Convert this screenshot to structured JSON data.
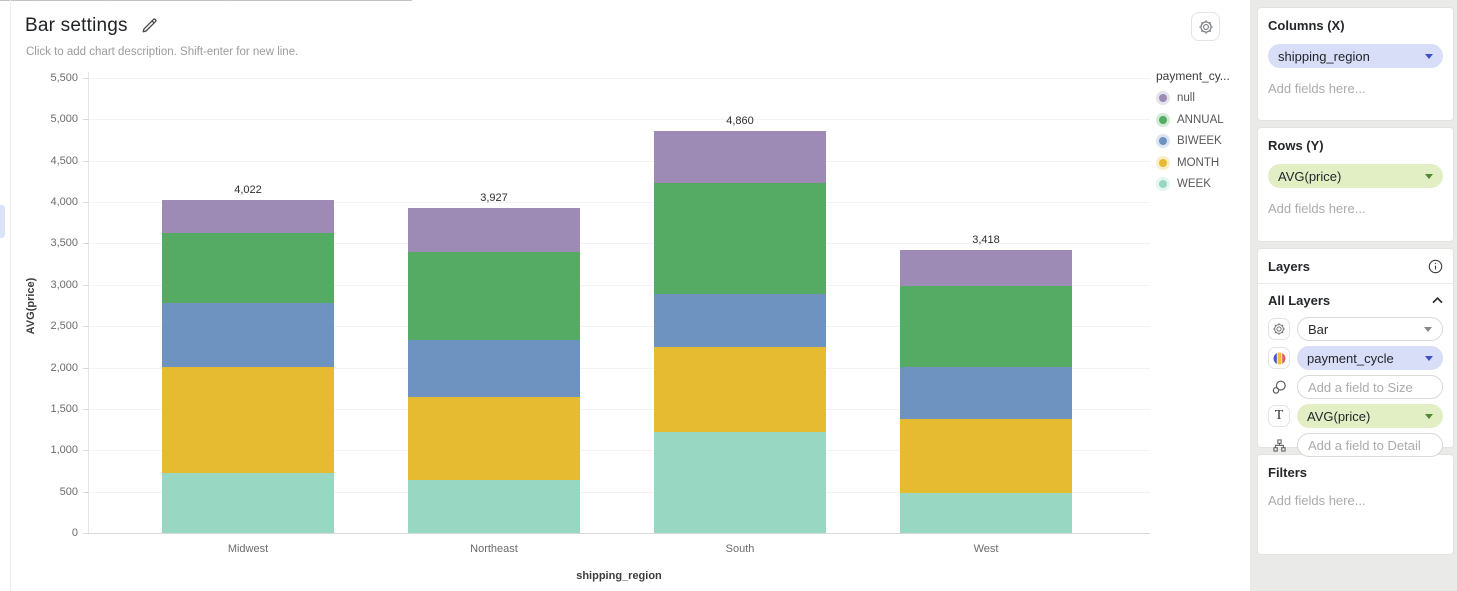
{
  "header": {
    "title": "Bar settings",
    "description_placeholder": "Click to add chart description. Shift-enter for new line."
  },
  "chart_data": {
    "type": "bar",
    "stacked": true,
    "xlabel": "shipping_region",
    "ylabel": "AVG(price)",
    "categories": [
      "Midwest",
      "Northeast",
      "South",
      "West"
    ],
    "series": [
      {
        "name": "null",
        "color": "#9d8bb5",
        "values": [
          392,
          527,
          633,
          428
        ]
      },
      {
        "name": "ANNUAL",
        "color": "#55ab63",
        "values": [
          846,
          1067,
          1342,
          980
        ]
      },
      {
        "name": "BIWEEK",
        "color": "#6e93c0",
        "values": [
          774,
          693,
          633,
          636
        ]
      },
      {
        "name": "MONTH",
        "color": "#e6ba31",
        "values": [
          1288,
          999,
          1027,
          894
        ]
      },
      {
        "name": "WEEK",
        "color": "#98d7c2",
        "values": [
          722,
          641,
          1225,
          480
        ]
      }
    ],
    "totals": [
      4022,
      3927,
      4860,
      3418
    ],
    "totals_labels": [
      "4,022",
      "3,927",
      "4,860",
      "3,418"
    ],
    "legend_title": "payment_cy...",
    "legend_position": "right",
    "ylim": [
      0,
      5500
    ],
    "ytick_labels": [
      "0",
      "500",
      "1,000",
      "1,500",
      "2,000",
      "2,500",
      "3,000",
      "3,500",
      "4,000",
      "4,500",
      "5,000",
      "5,500"
    ],
    "grid": "horizontal"
  },
  "sidebar": {
    "columns": {
      "title": "Columns (X)",
      "field": "shipping_region",
      "placeholder": "Add fields here..."
    },
    "rows": {
      "title": "Rows (Y)",
      "field": "AVG(price)",
      "placeholder": "Add fields here..."
    },
    "layers": {
      "title": "Layers",
      "group_title": "All Layers",
      "chart_type_value": "Bar",
      "color_field": "payment_cycle",
      "size_placeholder": "Add a field to Size",
      "text_field": "AVG(price)",
      "detail_placeholder": "Add a field to Detail"
    },
    "filters": {
      "title": "Filters",
      "placeholder": "Add fields here..."
    }
  },
  "colors": {
    "dimension_pill_bg": "#d9def8",
    "dimension_caret": "#3f51c9",
    "measure_pill_bg": "#e2efc5",
    "measure_caret": "#4d8b2f",
    "accent_tab": "#dbe4f7"
  }
}
